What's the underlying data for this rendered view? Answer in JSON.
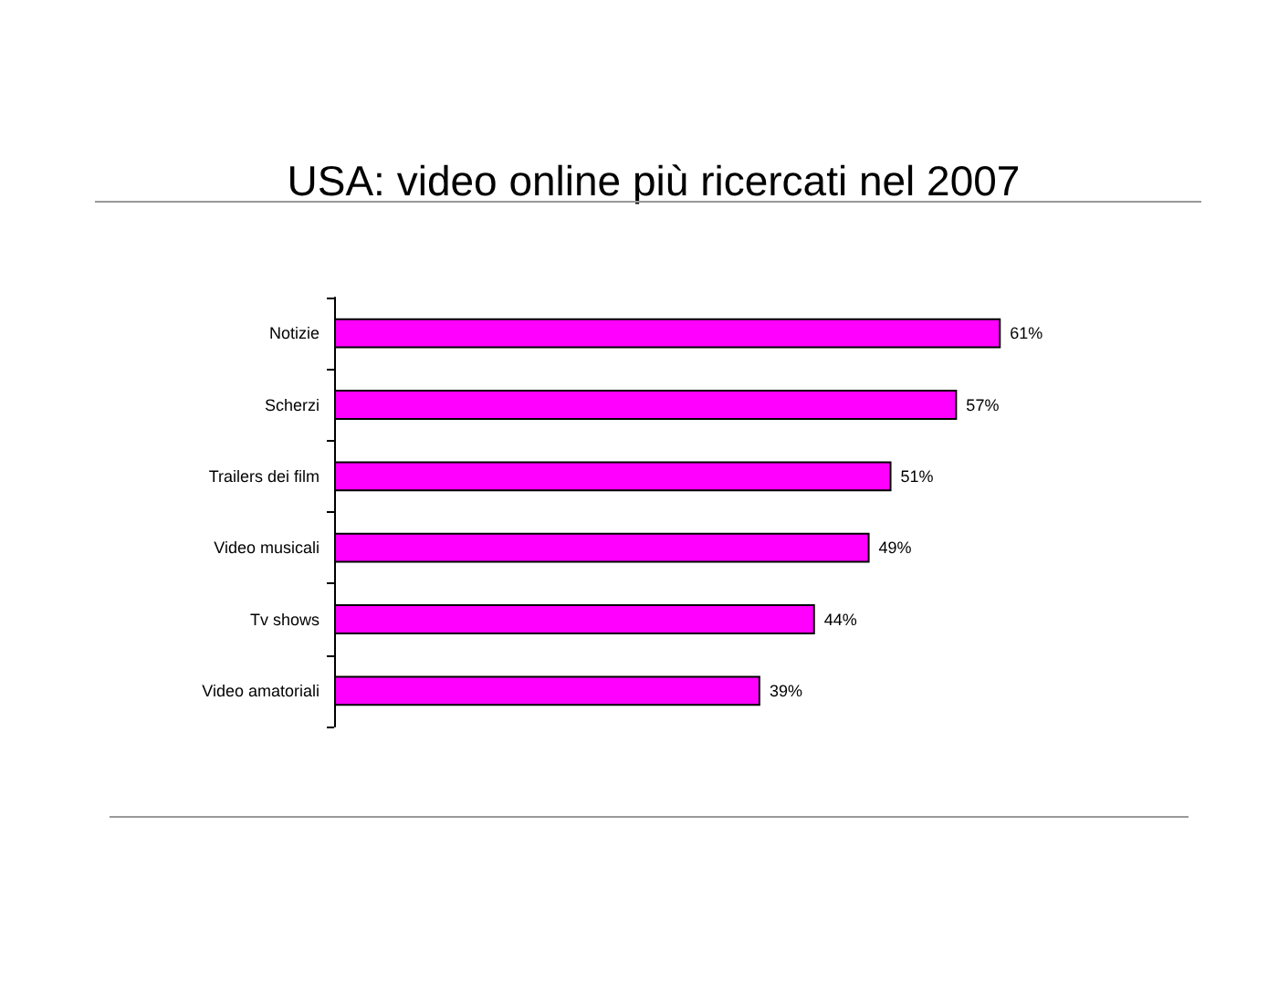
{
  "chart_data": {
    "type": "bar",
    "orientation": "horizontal",
    "title": "USA: video online più ricercati nel 2007",
    "categories": [
      "Notizie",
      "Scherzi",
      "Trailers dei film",
      "Video musicali",
      "Tv shows",
      "Video amatoriali"
    ],
    "values": [
      61,
      57,
      51,
      49,
      44,
      39
    ],
    "value_labels": [
      "61%",
      "57%",
      "51%",
      "49%",
      "44%",
      "39%"
    ],
    "color": "#ff00ff"
  }
}
